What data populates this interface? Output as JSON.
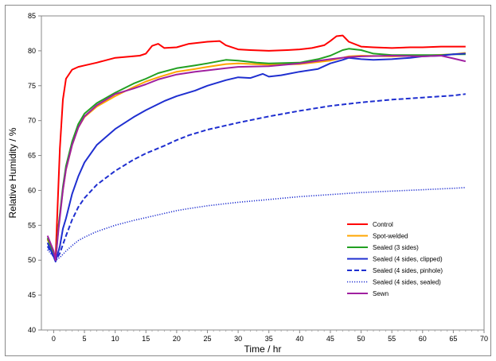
{
  "chart_data": {
    "type": "line",
    "title": "",
    "xlabel": "Time / hr",
    "ylabel": "Relative Humidity / %",
    "xlim": [
      -2,
      70
    ],
    "ylim": [
      40,
      85
    ],
    "x_ticks": [
      0,
      5,
      10,
      15,
      20,
      25,
      30,
      35,
      40,
      45,
      50,
      55,
      60,
      65,
      70
    ],
    "y_ticks": [
      40,
      45,
      50,
      55,
      60,
      65,
      70,
      75,
      80,
      85
    ],
    "grid": false,
    "legend_position": "lower-right",
    "series": [
      {
        "name": "Control",
        "color": "#ff0000",
        "style": "solid",
        "x": [
          -1,
          0,
          0.3,
          0.6,
          1,
          1.5,
          2,
          3,
          4,
          5,
          7,
          10,
          14,
          15,
          16,
          17,
          18,
          20,
          22,
          25,
          27,
          28,
          30,
          32,
          35,
          38,
          40,
          42,
          44,
          45,
          46,
          47,
          48,
          50,
          52,
          55,
          58,
          60,
          63,
          65,
          67
        ],
        "y": [
          53,
          51,
          50.2,
          57,
          66,
          73,
          76,
          77.3,
          77.7,
          77.9,
          78.3,
          79,
          79.3,
          79.6,
          80.7,
          81,
          80.4,
          80.5,
          81,
          81.3,
          81.4,
          80.8,
          80.2,
          80.1,
          80,
          80.1,
          80.2,
          80.4,
          80.8,
          81.4,
          82.1,
          82.2,
          81.3,
          80.6,
          80.5,
          80.4,
          80.5,
          80.5,
          80.6,
          80.6,
          80.6
        ]
      },
      {
        "name": "Spot-welded",
        "color": "#ffa500",
        "style": "solid",
        "x": [
          -1,
          0,
          0.3,
          0.8,
          1.5,
          2,
          3,
          4,
          5,
          7,
          10,
          13,
          15,
          17,
          20,
          23,
          25,
          28,
          30,
          35,
          40,
          45,
          48,
          50,
          55,
          60,
          65,
          67
        ],
        "y": [
          53,
          51,
          49.9,
          55,
          60,
          63,
          66.5,
          69,
          70.5,
          72,
          73.5,
          74.8,
          75.6,
          76.2,
          77,
          77.4,
          77.7,
          78.1,
          78.2,
          78,
          78.1,
          78.6,
          79.2,
          79.3,
          79.2,
          79.3,
          79.5,
          79.7
        ]
      },
      {
        "name": "Sealed (3 sides)",
        "color": "#22a022",
        "style": "solid",
        "x": [
          -1,
          0,
          0.3,
          0.8,
          1.5,
          2,
          3,
          4,
          5,
          7,
          10,
          13,
          15,
          17,
          20,
          23,
          25,
          28,
          30,
          33,
          35,
          40,
          43,
          45,
          47,
          48,
          50,
          52,
          55,
          60,
          63,
          65,
          67
        ],
        "y": [
          53.2,
          51,
          50,
          55,
          60.5,
          63.5,
          67,
          69.5,
          71,
          72.5,
          74,
          75.3,
          76,
          76.8,
          77.5,
          77.9,
          78.2,
          78.7,
          78.6,
          78.3,
          78.2,
          78.3,
          78.8,
          79.3,
          80.1,
          80.3,
          80.1,
          79.6,
          79.4,
          79.4,
          79.4,
          79.5,
          79.5
        ]
      },
      {
        "name": "Sealed (4 sides, clipped)",
        "color": "#1f2fd0",
        "style": "solid",
        "x": [
          -1,
          0,
          0.3,
          1,
          1.5,
          2,
          3,
          4,
          5,
          7,
          10,
          13,
          15,
          18,
          20,
          23,
          25,
          28,
          30,
          32,
          34,
          35,
          37,
          40,
          43,
          45,
          47,
          48,
          50,
          52,
          55,
          58,
          60,
          63,
          65,
          67
        ],
        "y": [
          52.5,
          50.5,
          49.8,
          52,
          54.5,
          56,
          59.5,
          62,
          64,
          66.5,
          68.8,
          70.5,
          71.5,
          72.8,
          73.5,
          74.3,
          75,
          75.8,
          76.2,
          76.1,
          76.7,
          76.3,
          76.5,
          77,
          77.4,
          78.2,
          78.7,
          79,
          78.8,
          78.7,
          78.8,
          79,
          79.2,
          79.3,
          79.5,
          79.6
        ]
      },
      {
        "name": "Sealed (4 sides, pinhole)",
        "color": "#1f2fd0",
        "style": "dashed",
        "x": [
          -1,
          0,
          0.3,
          1,
          2,
          3,
          4,
          5,
          7,
          10,
          13,
          15,
          18,
          20,
          22,
          25,
          28,
          30,
          35,
          40,
          45,
          50,
          55,
          60,
          65,
          67
        ],
        "y": [
          52,
          50.5,
          49.9,
          51,
          53.5,
          55.8,
          57.6,
          58.9,
          60.8,
          62.8,
          64.4,
          65.3,
          66.4,
          67.2,
          67.9,
          68.7,
          69.3,
          69.7,
          70.6,
          71.4,
          72.1,
          72.6,
          73,
          73.3,
          73.6,
          73.8
        ]
      },
      {
        "name": "Sealed (4 sides, sealed)",
        "color": "#1f2fd0",
        "style": "dotted",
        "x": [
          -1,
          0,
          0.3,
          1,
          2,
          3,
          4,
          5,
          7,
          10,
          13,
          15,
          18,
          20,
          22,
          25,
          28,
          30,
          35,
          40,
          45,
          50,
          55,
          60,
          65,
          67
        ],
        "y": [
          51.5,
          50.5,
          50,
          50.4,
          51.3,
          52.1,
          52.8,
          53.3,
          54.1,
          55,
          55.7,
          56.1,
          56.7,
          57.1,
          57.4,
          57.8,
          58.1,
          58.3,
          58.7,
          59.1,
          59.4,
          59.7,
          59.9,
          60.1,
          60.3,
          60.4
        ]
      },
      {
        "name": "Sewn",
        "color": "#a020a0",
        "style": "solid",
        "x": [
          -1,
          0,
          0.3,
          0.8,
          1.5,
          2,
          3,
          4,
          5,
          7,
          10,
          13,
          15,
          17,
          20,
          23,
          25,
          28,
          30,
          35,
          40,
          45,
          48,
          50,
          55,
          60,
          63,
          65,
          67
        ],
        "y": [
          53.5,
          51.3,
          50,
          54.5,
          60,
          63,
          66.5,
          69,
          70.6,
          72.2,
          73.8,
          74.6,
          75.2,
          75.9,
          76.6,
          77,
          77.2,
          77.5,
          77.7,
          77.8,
          78.2,
          78.8,
          79.1,
          79.2,
          79.3,
          79.2,
          79.3,
          78.9,
          78.5
        ]
      }
    ]
  }
}
